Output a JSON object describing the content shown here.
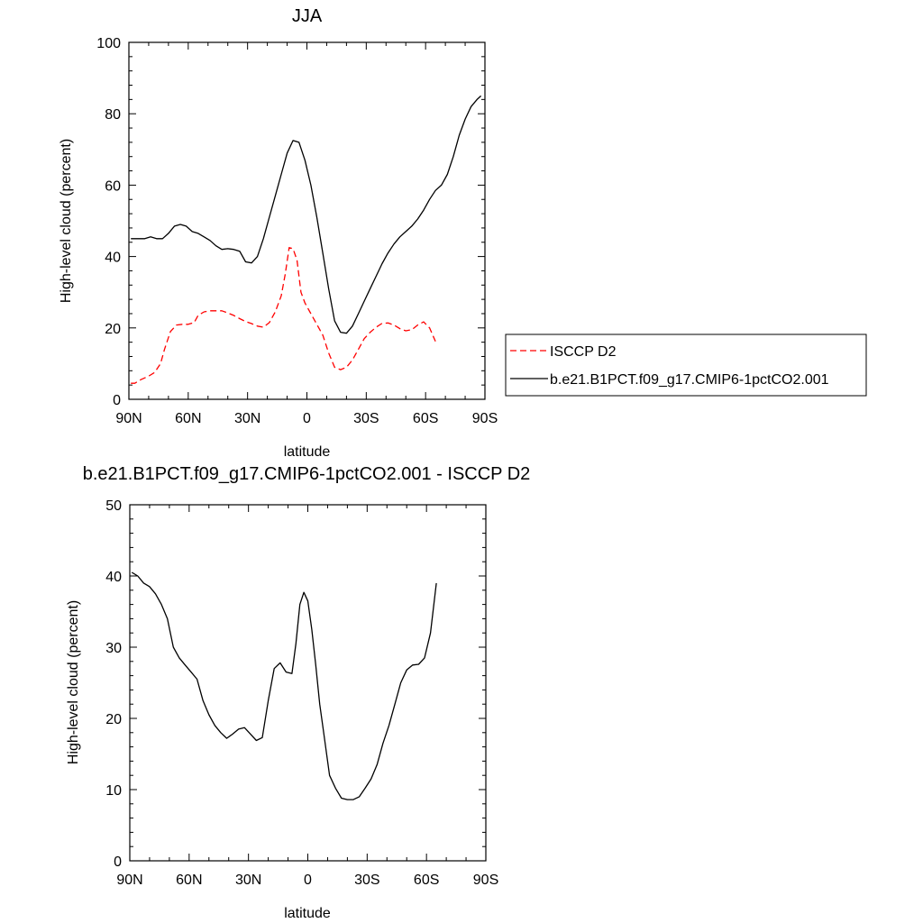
{
  "chart_data": [
    {
      "type": "line",
      "title": "JJA",
      "xlabel": "latitude",
      "ylabel": "High-level cloud (percent)",
      "xlim": [
        -90,
        90
      ],
      "ylim": [
        0,
        100
      ],
      "x_ticks": [
        -90,
        -60,
        -30,
        0,
        30,
        60,
        90
      ],
      "x_tick_labels": [
        "90N",
        "60N",
        "30N",
        "0",
        "30S",
        "60S",
        "90S"
      ],
      "y_ticks": [
        0,
        20,
        40,
        60,
        80,
        100
      ],
      "y_tick_labels": [
        "0",
        "20",
        "40",
        "60",
        "80",
        "100"
      ],
      "grid": false,
      "legend_position": "right",
      "series": [
        {
          "name": "ISCCP D2",
          "color": "#ff0000",
          "dash": "dashed",
          "x": [
            -89,
            -87,
            -84,
            -80,
            -77,
            -74,
            -72,
            -69,
            -66,
            -63,
            -60,
            -57,
            -55,
            -52,
            -49,
            -46,
            -43,
            -40,
            -37,
            -34,
            -31,
            -28,
            -25,
            -22,
            -19,
            -16,
            -13,
            -11,
            -9,
            -7,
            -5,
            -3,
            -1,
            2,
            5,
            8,
            11,
            14,
            17,
            20,
            23,
            26,
            29,
            32,
            35,
            38,
            41,
            44,
            47,
            50,
            53,
            56,
            59,
            62,
            65
          ],
          "y": [
            4.5,
            4.5,
            5.5,
            6.5,
            7.5,
            10,
            14,
            19,
            20.8,
            21,
            21,
            21.5,
            23.5,
            24.5,
            24.8,
            24.8,
            24.8,
            24.2,
            23.5,
            22.6,
            21.8,
            21.2,
            20.5,
            20.2,
            21.5,
            24.5,
            29,
            35,
            42.5,
            42.2,
            39,
            30,
            27,
            24,
            21,
            18,
            13,
            9,
            8.3,
            9,
            11,
            14,
            17,
            18.8,
            20.2,
            21.3,
            21.4,
            20.8,
            19.8,
            19.2,
            19.5,
            20.8,
            21.7,
            20,
            16.2
          ]
        },
        {
          "name": "b.e21.B1PCT.f09_g17.CMIP6-1pctCO2.001",
          "color": "#000000",
          "dash": "solid",
          "x": [
            -89,
            -86,
            -82,
            -79,
            -76,
            -73,
            -70,
            -67,
            -64,
            -61,
            -58,
            -55,
            -52,
            -49,
            -46,
            -43,
            -40,
            -37,
            -34,
            -31,
            -28,
            -25,
            -22,
            -19,
            -16,
            -13,
            -10,
            -7,
            -4,
            -1,
            2,
            5,
            8,
            11,
            14,
            17,
            20,
            23,
            26,
            29,
            32,
            35,
            38,
            41,
            44,
            47,
            50,
            53,
            56,
            59,
            62,
            65,
            68,
            71,
            74,
            77,
            80,
            83,
            86,
            88
          ],
          "y": [
            45,
            45,
            45,
            45.5,
            45,
            45,
            46.5,
            48.5,
            49,
            48.5,
            47,
            46.5,
            45.5,
            44.5,
            43,
            42,
            42.2,
            42,
            41.5,
            38.5,
            38.2,
            40,
            45,
            51,
            57,
            63,
            69,
            72.5,
            72,
            67,
            60,
            51,
            41,
            31,
            22,
            18.8,
            18.5,
            20.5,
            24,
            27.5,
            31,
            34.5,
            38,
            41,
            43.5,
            45.5,
            47,
            48.5,
            50.5,
            53,
            56,
            58.5,
            60,
            63,
            68,
            74,
            78.5,
            82,
            84,
            85
          ]
        }
      ]
    },
    {
      "type": "line",
      "title": "b.e21.B1PCT.f09_g17.CMIP6-1pctCO2.001 - ISCCP D2",
      "xlabel": "latitude",
      "ylabel": "High-level cloud (percent)",
      "xlim": [
        -90,
        90
      ],
      "ylim": [
        0,
        50
      ],
      "x_ticks": [
        -90,
        -60,
        -30,
        0,
        30,
        60,
        90
      ],
      "x_tick_labels": [
        "90N",
        "60N",
        "30N",
        "0",
        "30S",
        "60S",
        "90S"
      ],
      "y_ticks": [
        0,
        10,
        20,
        30,
        40,
        50
      ],
      "y_tick_labels": [
        "0",
        "10",
        "20",
        "30",
        "40",
        "50"
      ],
      "grid": false,
      "series": [
        {
          "color": "#000000",
          "dash": "solid",
          "x": [
            -89,
            -86,
            -83,
            -80,
            -77,
            -74,
            -71,
            -68,
            -65,
            -62,
            -59,
            -56,
            -53,
            -50,
            -47,
            -44,
            -41,
            -38,
            -35,
            -32,
            -29,
            -26,
            -23,
            -20,
            -17,
            -14,
            -11,
            -8,
            -6,
            -4,
            -2,
            0,
            2,
            4,
            6,
            8,
            11,
            14,
            17,
            20,
            23,
            26,
            29,
            32,
            35,
            38,
            41,
            44,
            47,
            50,
            53,
            56,
            59,
            62,
            65
          ],
          "y": [
            40.5,
            40,
            39,
            38.5,
            37.5,
            36,
            34,
            30,
            28.5,
            27.5,
            26.5,
            25.5,
            22.5,
            20.5,
            19,
            18,
            17.2,
            17.8,
            18.5,
            18.7,
            17.8,
            16.9,
            17.3,
            22.5,
            27,
            27.8,
            26.5,
            26.3,
            30.5,
            36,
            37.7,
            36.5,
            32.5,
            27.5,
            22,
            18,
            12,
            10.2,
            8.8,
            8.6,
            8.6,
            9,
            10.2,
            11.5,
            13.5,
            16.5,
            19,
            22,
            25,
            26.8,
            27.5,
            27.6,
            28.5,
            32,
            39
          ]
        }
      ]
    }
  ]
}
